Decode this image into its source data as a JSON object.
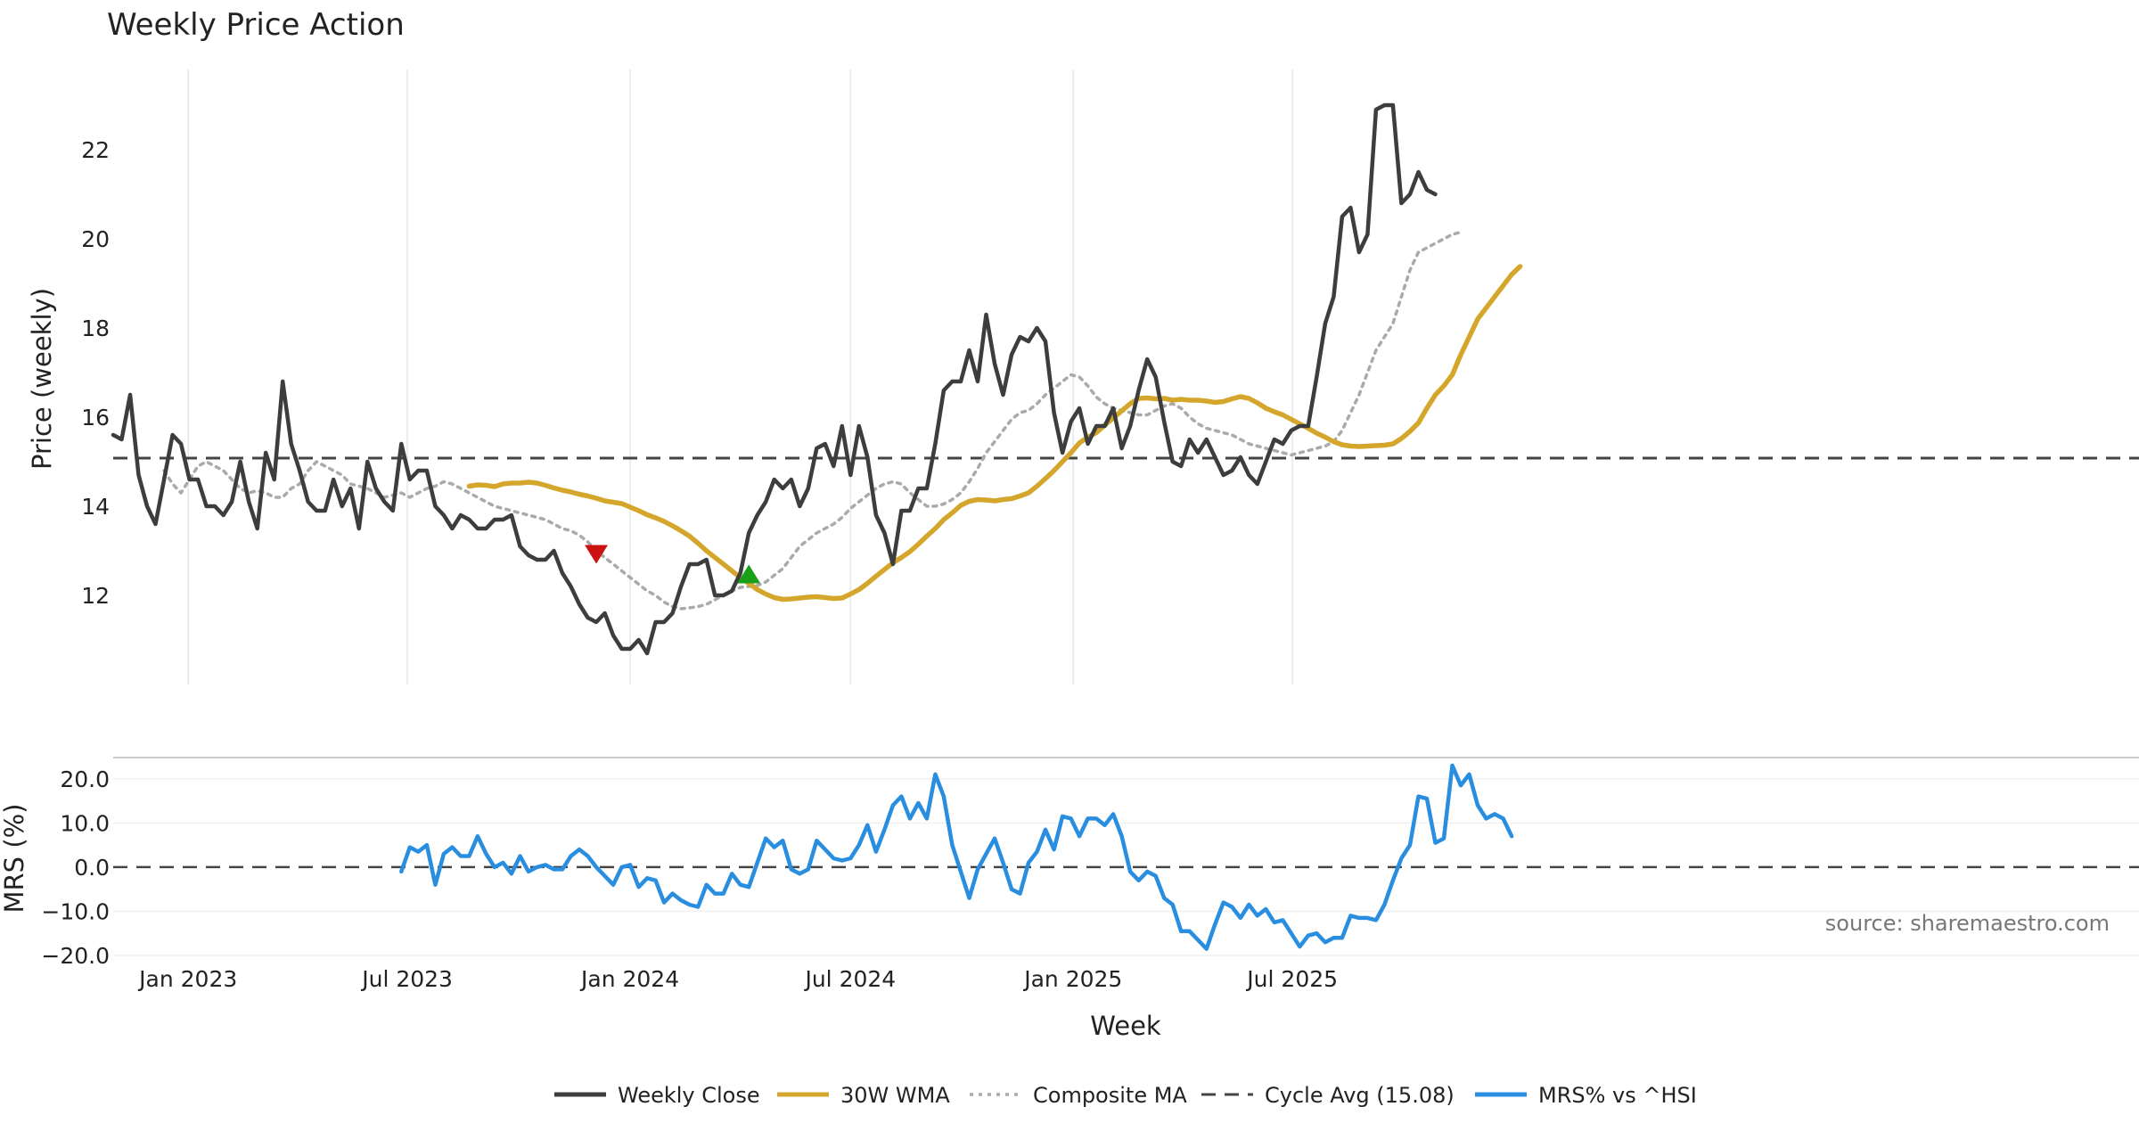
{
  "colors": {
    "close": "#3d3d3d",
    "wma": "#d4a72c",
    "composite": "#aaaaaa",
    "cycle": "#444444",
    "mrs": "#2a8ee0",
    "sell_marker": "#cc1111",
    "buy_marker": "#18a018",
    "grid": "#e8e8e8"
  },
  "chart_data": [
    {
      "type": "line",
      "title": "Weekly Price Action",
      "xlabel": "",
      "ylabel": "Price (weekly)",
      "ylim": [
        10.0,
        23.8
      ],
      "yticks": [
        "12",
        "14",
        "16",
        "18",
        "20",
        "22"
      ],
      "x_start": "2022-10-31",
      "x_step_weeks": 1,
      "series": [
        {
          "name": "Weekly Close",
          "values": [
            15.6,
            15.5,
            16.5,
            14.7,
            14.0,
            13.6,
            14.6,
            15.6,
            15.4,
            14.6,
            14.6,
            14.0,
            14.0,
            13.8,
            14.1,
            15.0,
            14.1,
            13.5,
            15.2,
            14.6,
            16.8,
            15.4,
            14.8,
            14.1,
            13.9,
            13.9,
            14.6,
            14.0,
            14.4,
            13.5,
            15.0,
            14.4,
            14.1,
            13.9,
            15.4,
            14.6,
            14.8,
            14.8,
            14.0,
            13.8,
            13.5,
            13.8,
            13.7,
            13.5,
            13.5,
            13.7,
            13.7,
            13.8,
            13.1,
            12.9,
            12.8,
            12.8,
            13.0,
            12.5,
            12.2,
            11.8,
            11.5,
            11.4,
            11.6,
            11.1,
            10.8,
            10.8,
            11.0,
            10.7,
            11.4,
            11.4,
            11.6,
            12.2,
            12.7,
            12.7,
            12.8,
            12.0,
            12.0,
            12.1,
            12.5,
            13.4,
            13.8,
            14.1,
            14.6,
            14.4,
            14.6,
            14.0,
            14.4,
            15.3,
            15.4,
            14.9,
            15.8,
            14.7,
            15.8,
            15.1,
            13.8,
            13.4,
            12.7,
            13.9,
            13.9,
            14.4,
            14.4,
            15.4,
            16.6,
            16.8,
            16.8,
            17.5,
            16.8,
            18.3,
            17.2,
            16.5,
            17.4,
            17.8,
            17.7,
            18.0,
            17.7,
            16.1,
            15.2,
            15.9,
            16.2,
            15.4,
            15.8,
            15.8,
            16.2,
            15.3,
            15.8,
            16.6,
            17.3,
            16.9,
            15.9,
            15.0,
            14.9,
            15.5,
            15.2,
            15.5,
            15.1,
            14.7,
            14.8,
            15.1,
            14.7,
            14.5,
            15.0,
            15.5,
            15.4,
            15.7,
            15.8,
            15.8,
            16.9,
            18.1,
            18.7,
            20.5,
            20.7,
            19.7,
            20.1,
            22.9,
            23.0,
            23.0,
            20.8,
            21.0,
            21.5,
            21.1,
            21.0
          ]
        },
        {
          "name": "30W WMA",
          "start_index": 42,
          "values": [
            14.45,
            14.48,
            14.47,
            14.44,
            14.5,
            14.52,
            14.52,
            14.54,
            14.52,
            14.47,
            14.41,
            14.36,
            14.32,
            14.27,
            14.23,
            14.18,
            14.12,
            14.09,
            14.06,
            13.98,
            13.9,
            13.81,
            13.74,
            13.66,
            13.56,
            13.45,
            13.33,
            13.17,
            13.0,
            12.85,
            12.7,
            12.55,
            12.4,
            12.27,
            12.13,
            12.03,
            11.95,
            11.91,
            11.92,
            11.94,
            11.96,
            11.97,
            11.95,
            11.93,
            11.94,
            12.03,
            12.13,
            12.27,
            12.43,
            12.58,
            12.73,
            12.85,
            12.98,
            13.15,
            13.33,
            13.5,
            13.7,
            13.85,
            14.02,
            14.11,
            14.15,
            14.14,
            14.12,
            14.15,
            14.17,
            14.23,
            14.3,
            14.45,
            14.62,
            14.8,
            15.0,
            15.2,
            15.42,
            15.55,
            15.65,
            15.82,
            15.98,
            16.14,
            16.3,
            16.42,
            16.43,
            16.41,
            16.42,
            16.38,
            16.4,
            16.38,
            16.38,
            16.36,
            16.33,
            16.35,
            16.41,
            16.46,
            16.42,
            16.32,
            16.2,
            16.12,
            16.05,
            15.95,
            15.85,
            15.75,
            15.64,
            15.55,
            15.45,
            15.38,
            15.35,
            15.34,
            15.35,
            15.36,
            15.37,
            15.4,
            15.52,
            15.68,
            15.87,
            16.2,
            16.5,
            16.7,
            16.95,
            17.4,
            17.8,
            18.2,
            18.45,
            18.7,
            18.95,
            19.2,
            19.38
          ]
        },
        {
          "name": "Composite MA",
          "start_index": 6,
          "values": [
            14.8,
            14.5,
            14.3,
            14.6,
            14.9,
            15.0,
            14.9,
            14.8,
            14.6,
            14.4,
            14.3,
            14.35,
            14.3,
            14.2,
            14.2,
            14.4,
            14.5,
            14.8,
            15.0,
            14.9,
            14.8,
            14.7,
            14.5,
            14.45,
            14.4,
            14.3,
            14.2,
            14.25,
            14.3,
            14.2,
            14.3,
            14.4,
            14.45,
            14.55,
            14.5,
            14.4,
            14.3,
            14.2,
            14.1,
            14.0,
            13.95,
            13.9,
            13.85,
            13.8,
            13.75,
            13.7,
            13.6,
            13.5,
            13.45,
            13.35,
            13.2,
            13.0,
            12.85,
            12.7,
            12.55,
            12.4,
            12.25,
            12.1,
            12.0,
            11.85,
            11.75,
            11.7,
            11.72,
            11.75,
            11.8,
            11.9,
            12.0,
            12.1,
            12.18,
            12.2,
            12.22,
            12.3,
            12.45,
            12.6,
            12.85,
            13.1,
            13.25,
            13.4,
            13.5,
            13.6,
            13.75,
            13.95,
            14.1,
            14.25,
            14.4,
            14.5,
            14.55,
            14.5,
            14.3,
            14.15,
            14.0,
            14.0,
            14.05,
            14.15,
            14.3,
            14.55,
            14.85,
            15.2,
            15.45,
            15.7,
            15.95,
            16.1,
            16.15,
            16.3,
            16.5,
            16.65,
            16.8,
            16.95,
            16.9,
            16.7,
            16.45,
            16.3,
            16.2,
            16.15,
            16.1,
            16.05,
            16.05,
            16.15,
            16.25,
            16.3,
            16.2,
            16.0,
            15.85,
            15.75,
            15.7,
            15.65,
            15.6,
            15.5,
            15.4,
            15.35,
            15.3,
            15.25,
            15.2,
            15.15,
            15.2,
            15.25,
            15.3,
            15.35,
            15.45,
            15.7,
            16.1,
            16.5,
            17.0,
            17.5,
            17.8,
            18.1,
            18.7,
            19.3,
            19.7,
            19.8,
            19.9,
            20.0,
            20.1,
            20.15
          ]
        },
        {
          "name": "Cycle Avg (15.08)",
          "constant": 15.08
        }
      ],
      "markers": [
        {
          "type": "sell",
          "date": "2023-12-04",
          "value": 12.95
        },
        {
          "type": "buy",
          "date": "2024-04-08",
          "value": 12.45
        }
      ]
    },
    {
      "type": "line",
      "title": "",
      "xlabel": "Week",
      "ylabel": "MRS (%)",
      "ylim": [
        -20.6,
        24.8
      ],
      "yticks": [
        "20.0",
        "10.0",
        "0.0",
        "−10.0",
        "−20.0"
      ],
      "xticks": [
        "Jan 2023",
        "Jul 2023",
        "Jan 2024",
        "Jul 2024",
        "Jan 2025",
        "Jul 2025"
      ],
      "zero_line": 0,
      "series": [
        {
          "name": "MRS% vs ^HSI",
          "start_index": 34,
          "values": [
            -1.0,
            4.5,
            3.5,
            5.0,
            -4.0,
            3.0,
            4.5,
            2.5,
            2.5,
            7.0,
            3.0,
            0.0,
            1.0,
            -1.5,
            2.5,
            -1.0,
            0.0,
            0.5,
            -0.5,
            -0.5,
            2.5,
            4.0,
            2.5,
            0.0,
            -2.0,
            -4.0,
            0.0,
            0.5,
            -4.5,
            -2.5,
            -3.0,
            -8.0,
            -6.0,
            -7.5,
            -8.5,
            -9.0,
            -4.0,
            -6.0,
            -6.0,
            -1.5,
            -4.0,
            -4.5,
            1.0,
            6.5,
            4.5,
            6.0,
            -0.5,
            -1.5,
            -0.5,
            6.0,
            4.0,
            2.0,
            1.5,
            2.0,
            5.0,
            9.5,
            3.5,
            8.5,
            14.0,
            16.0,
            11.0,
            14.5,
            11.0,
            21.0,
            16.0,
            5.0,
            -1.0,
            -7.0,
            -0.5,
            3.0,
            6.5,
            1.0,
            -5.0,
            -6.0,
            1.0,
            3.5,
            8.5,
            4.0,
            11.5,
            11.0,
            7.0,
            11.0,
            11.0,
            9.5,
            12.0,
            7.0,
            -1.0,
            -3.0,
            -1.0,
            -2.0,
            -7.0,
            -8.5,
            -14.5,
            -14.5,
            -16.5,
            -18.5,
            -13.0,
            -8.0,
            -9.0,
            -11.5,
            -8.5,
            -11.0,
            -9.5,
            -12.5,
            -12.0,
            -15.0,
            -18.0,
            -15.5,
            -15.0,
            -17.0,
            -16.0,
            -16.0,
            -11.0,
            -11.5,
            -11.5,
            -12.0,
            -8.5,
            -3.0,
            2.0,
            5.0,
            16.0,
            15.5,
            5.5,
            6.5,
            23.0,
            18.5,
            21.0,
            14.0,
            11.0,
            12.0,
            11.0,
            7.0
          ]
        }
      ]
    }
  ],
  "legend": [
    {
      "key": "close",
      "label": "Weekly Close",
      "style": "solid"
    },
    {
      "key": "wma",
      "label": "30W WMA",
      "style": "solid"
    },
    {
      "key": "composite",
      "label": "Composite MA",
      "style": "dotted"
    },
    {
      "key": "cycle",
      "label": "Cycle Avg (15.08)",
      "style": "dashed"
    },
    {
      "key": "mrs",
      "label": "MRS% vs ^HSI",
      "style": "solid"
    }
  ],
  "source_text": "source: sharemaestro.com"
}
